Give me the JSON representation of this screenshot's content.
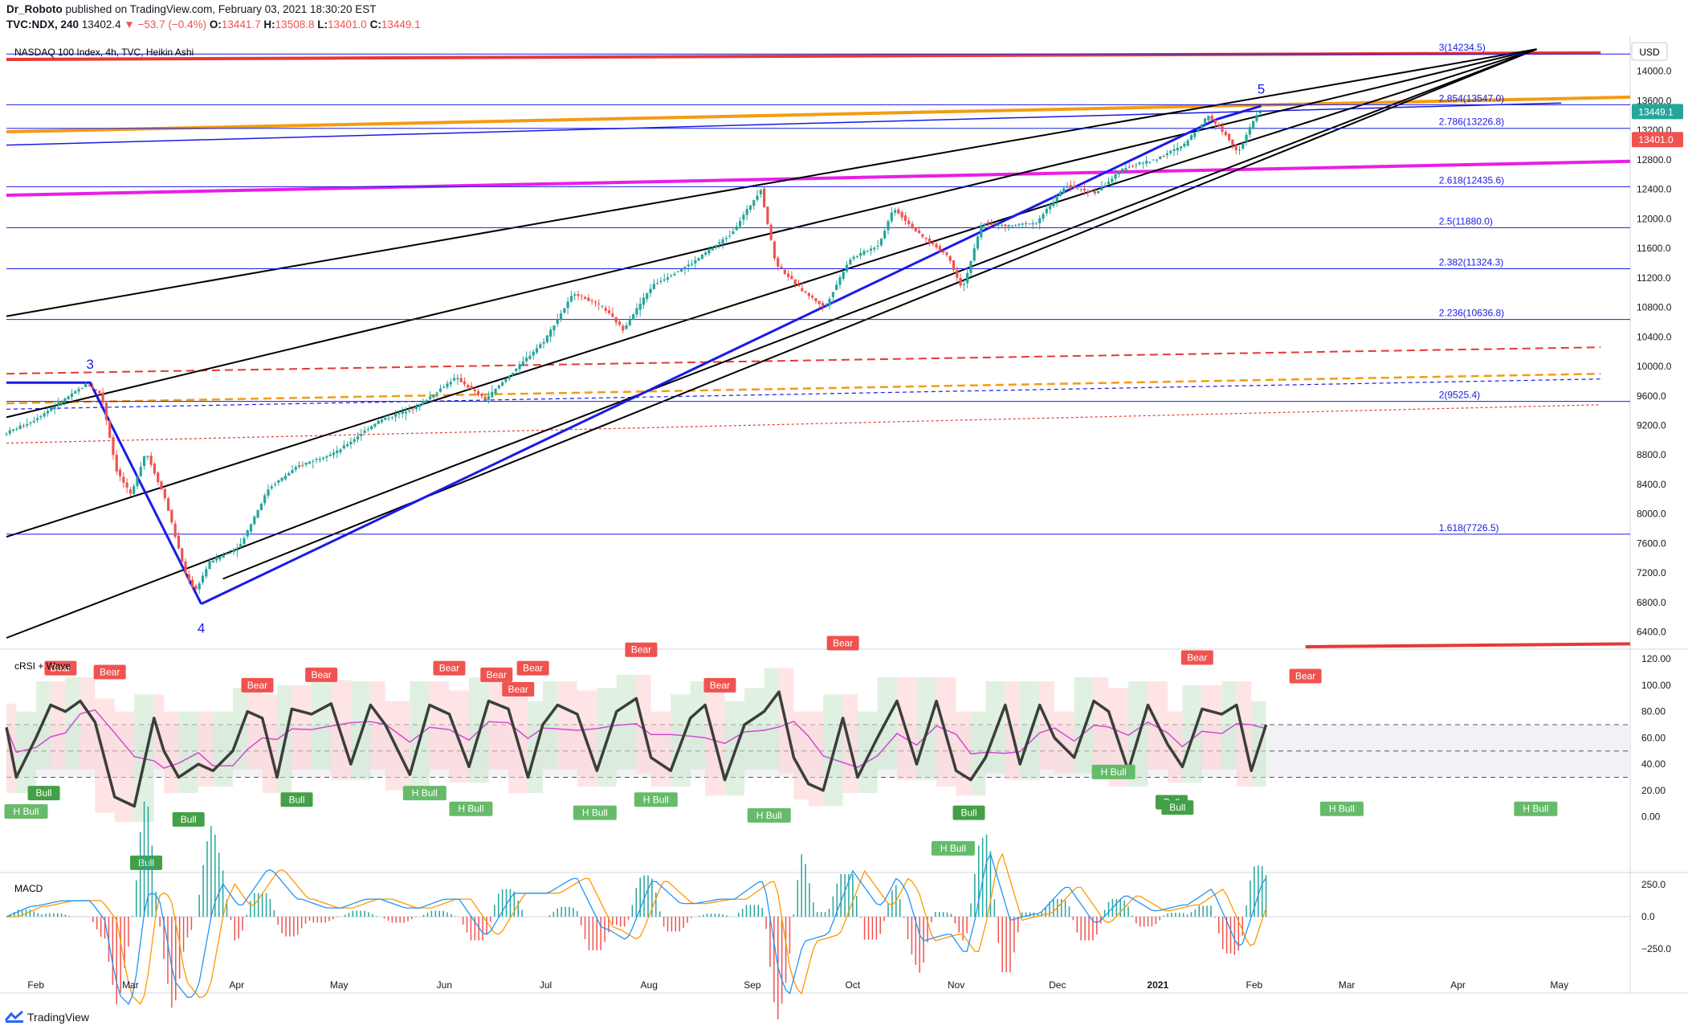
{
  "header": {
    "author": "Dr_Roboto",
    "published": "published on TradingView.com, February 03, 2021 18:30:20 EST",
    "symbol": "TVC:NDX, 240",
    "last": "13402.4",
    "change": "−53.7 (−0.4%)",
    "o_label": "O:",
    "o_value": "13441.7",
    "h_label": "H:",
    "h_value": "13508.8",
    "l_label": "L:",
    "l_value": "13401.0",
    "c_label": "C:",
    "c_value": "13449.1"
  },
  "legend_main": "NASDAQ 100 Index, 4h, TVC, Heikin Ashi",
  "currency": "USD",
  "price_badges": {
    "last": "13449.1",
    "low": "13401.0"
  },
  "footer": {
    "brand": "TradingView"
  },
  "colors": {
    "up": "#26a69a",
    "down": "#ef5350",
    "fib": "#1a1ae6",
    "magenta": "#e91ee6",
    "orange": "#f39c12",
    "red": "#e53935",
    "wave": "#1a1ae6"
  },
  "chart_data": {
    "type": "line",
    "title": "NASDAQ 100 Index, 4h, TVC, Heikin Ashi",
    "chart_style": "heikin ashi candles",
    "x_ticks": [
      {
        "label": "Feb",
        "t": 0.3
      },
      {
        "label": "Mar",
        "t": 1.26
      },
      {
        "label": "Apr",
        "t": 2.34
      },
      {
        "label": "May",
        "t": 3.38
      },
      {
        "label": "Jun",
        "t": 4.45
      },
      {
        "label": "Jul",
        "t": 5.48
      },
      {
        "label": "Aug",
        "t": 6.53
      },
      {
        "label": "Sep",
        "t": 7.58
      },
      {
        "label": "Oct",
        "t": 8.6
      },
      {
        "label": "Nov",
        "t": 9.65
      },
      {
        "label": "Dec",
        "t": 10.68
      },
      {
        "label": "2021",
        "t": 11.7
      },
      {
        "label": "Feb",
        "t": 12.68
      },
      {
        "label": "Mar",
        "t": 13.62
      },
      {
        "label": "Apr",
        "t": 14.75
      },
      {
        "label": "May",
        "t": 15.78
      }
    ],
    "x_range": [
      0,
      16.5
    ],
    "price_axis": {
      "ticks": [
        14000,
        13600,
        13200,
        12800,
        12400,
        12000,
        11600,
        11200,
        10800,
        10400,
        10000,
        9600,
        9200,
        8800,
        8400,
        8000,
        7600,
        7200,
        6800,
        6400
      ],
      "ylim": [
        6200,
        14400
      ]
    },
    "price_series": [
      {
        "t": 0,
        "v": 9080
      },
      {
        "t": 0.3,
        "v": 9260
      },
      {
        "t": 0.6,
        "v": 9530
      },
      {
        "t": 0.85,
        "v": 9760
      },
      {
        "t": 1.0,
        "v": 9620
      },
      {
        "t": 1.15,
        "v": 8600
      },
      {
        "t": 1.3,
        "v": 8250
      },
      {
        "t": 1.45,
        "v": 8850
      },
      {
        "t": 1.65,
        "v": 8200
      },
      {
        "t": 1.85,
        "v": 7200
      },
      {
        "t": 1.95,
        "v": 6950
      },
      {
        "t": 2.1,
        "v": 7350
      },
      {
        "t": 2.4,
        "v": 7550
      },
      {
        "t": 2.7,
        "v": 8350
      },
      {
        "t": 3.0,
        "v": 8650
      },
      {
        "t": 3.4,
        "v": 8850
      },
      {
        "t": 3.8,
        "v": 9250
      },
      {
        "t": 4.2,
        "v": 9450
      },
      {
        "t": 4.6,
        "v": 9850
      },
      {
        "t": 4.9,
        "v": 9550
      },
      {
        "t": 5.2,
        "v": 9950
      },
      {
        "t": 5.5,
        "v": 10350
      },
      {
        "t": 5.8,
        "v": 11000
      },
      {
        "t": 6.1,
        "v": 10800
      },
      {
        "t": 6.3,
        "v": 10500
      },
      {
        "t": 6.6,
        "v": 11100
      },
      {
        "t": 7.0,
        "v": 11400
      },
      {
        "t": 7.4,
        "v": 11800
      },
      {
        "t": 7.7,
        "v": 12400
      },
      {
        "t": 7.85,
        "v": 11400
      },
      {
        "t": 8.1,
        "v": 11050
      },
      {
        "t": 8.35,
        "v": 10800
      },
      {
        "t": 8.6,
        "v": 11450
      },
      {
        "t": 8.9,
        "v": 11650
      },
      {
        "t": 9.05,
        "v": 12150
      },
      {
        "t": 9.3,
        "v": 11800
      },
      {
        "t": 9.6,
        "v": 11500
      },
      {
        "t": 9.75,
        "v": 11050
      },
      {
        "t": 9.95,
        "v": 11950
      },
      {
        "t": 10.2,
        "v": 11900
      },
      {
        "t": 10.5,
        "v": 11950
      },
      {
        "t": 10.8,
        "v": 12450
      },
      {
        "t": 11.1,
        "v": 12350
      },
      {
        "t": 11.4,
        "v": 12700
      },
      {
        "t": 11.7,
        "v": 12800
      },
      {
        "t": 12.0,
        "v": 13000
      },
      {
        "t": 12.25,
        "v": 13400
      },
      {
        "t": 12.45,
        "v": 13100
      },
      {
        "t": 12.55,
        "v": 12900
      },
      {
        "t": 12.75,
        "v": 13449
      }
    ],
    "fib_levels": [
      {
        "label": "3(14234.5)",
        "value": 14234.5
      },
      {
        "label": "2.854(13547.0)",
        "value": 13547.0
      },
      {
        "label": "2.786(13226.8)",
        "value": 13226.8
      },
      {
        "label": "2.618(12435.6)",
        "value": 12435.6
      },
      {
        "label": "2.5(11880.0)",
        "value": 11880.0
      },
      {
        "label": "2.382(11324.3)",
        "value": 11324.3
      },
      {
        "label": "2.236(10636.8)",
        "value": 10636.8
      },
      {
        "label": "2(9525.4)",
        "value": 9525.4
      },
      {
        "label": "1.618(7726.5)",
        "value": 7726.5
      }
    ],
    "wave_labels": [
      {
        "label": "3",
        "t": 0.85,
        "v": 9770
      },
      {
        "label": "4",
        "t": 1.98,
        "v": 6760
      },
      {
        "label": "5",
        "t": 12.75,
        "v": 13500
      }
    ],
    "indicator_rsi": {
      "title": "cRSI + Wave",
      "ticks": [
        120,
        100,
        80,
        60,
        40,
        20,
        0
      ],
      "ylim": [
        -40,
        125
      ],
      "reference_levels": [
        70,
        50,
        30
      ],
      "series": [
        {
          "t": 0,
          "v": 68
        },
        {
          "t": 0.1,
          "v": 30
        },
        {
          "t": 0.3,
          "v": 60
        },
        {
          "t": 0.45,
          "v": 85
        },
        {
          "t": 0.6,
          "v": 80
        },
        {
          "t": 0.75,
          "v": 88
        },
        {
          "t": 0.9,
          "v": 72
        },
        {
          "t": 1.1,
          "v": 15
        },
        {
          "t": 1.3,
          "v": 8
        },
        {
          "t": 1.5,
          "v": 75
        },
        {
          "t": 1.6,
          "v": 50
        },
        {
          "t": 1.75,
          "v": 30
        },
        {
          "t": 1.95,
          "v": 40
        },
        {
          "t": 2.1,
          "v": 35
        },
        {
          "t": 2.3,
          "v": 50
        },
        {
          "t": 2.45,
          "v": 80
        },
        {
          "t": 2.6,
          "v": 75
        },
        {
          "t": 2.75,
          "v": 30
        },
        {
          "t": 2.9,
          "v": 82
        },
        {
          "t": 3.1,
          "v": 78
        },
        {
          "t": 3.3,
          "v": 86
        },
        {
          "t": 3.5,
          "v": 40
        },
        {
          "t": 3.7,
          "v": 85
        },
        {
          "t": 3.85,
          "v": 70
        },
        {
          "t": 4.1,
          "v": 32
        },
        {
          "t": 4.3,
          "v": 85
        },
        {
          "t": 4.5,
          "v": 78
        },
        {
          "t": 4.7,
          "v": 38
        },
        {
          "t": 4.9,
          "v": 88
        },
        {
          "t": 5.1,
          "v": 82
        },
        {
          "t": 5.3,
          "v": 30
        },
        {
          "t": 5.45,
          "v": 70
        },
        {
          "t": 5.6,
          "v": 85
        },
        {
          "t": 5.8,
          "v": 78
        },
        {
          "t": 6.0,
          "v": 35
        },
        {
          "t": 6.2,
          "v": 80
        },
        {
          "t": 6.4,
          "v": 90
        },
        {
          "t": 6.55,
          "v": 45
        },
        {
          "t": 6.75,
          "v": 35
        },
        {
          "t": 6.95,
          "v": 75
        },
        {
          "t": 7.1,
          "v": 85
        },
        {
          "t": 7.3,
          "v": 28
        },
        {
          "t": 7.5,
          "v": 70
        },
        {
          "t": 7.7,
          "v": 80
        },
        {
          "t": 7.85,
          "v": 95
        },
        {
          "t": 8.0,
          "v": 45
        },
        {
          "t": 8.15,
          "v": 25
        },
        {
          "t": 8.3,
          "v": 20
        },
        {
          "t": 8.5,
          "v": 75
        },
        {
          "t": 8.65,
          "v": 30
        },
        {
          "t": 8.85,
          "v": 60
        },
        {
          "t": 9.05,
          "v": 88
        },
        {
          "t": 9.25,
          "v": 40
        },
        {
          "t": 9.45,
          "v": 88
        },
        {
          "t": 9.65,
          "v": 35
        },
        {
          "t": 9.8,
          "v": 28
        },
        {
          "t": 9.95,
          "v": 45
        },
        {
          "t": 10.15,
          "v": 85
        },
        {
          "t": 10.3,
          "v": 40
        },
        {
          "t": 10.5,
          "v": 85
        },
        {
          "t": 10.65,
          "v": 60
        },
        {
          "t": 10.85,
          "v": 45
        },
        {
          "t": 11.05,
          "v": 88
        },
        {
          "t": 11.2,
          "v": 80
        },
        {
          "t": 11.4,
          "v": 35
        },
        {
          "t": 11.6,
          "v": 85
        },
        {
          "t": 11.8,
          "v": 55
        },
        {
          "t": 11.95,
          "v": 38
        },
        {
          "t": 12.15,
          "v": 82
        },
        {
          "t": 12.35,
          "v": 78
        },
        {
          "t": 12.5,
          "v": 85
        },
        {
          "t": 12.65,
          "v": 35
        },
        {
          "t": 12.8,
          "v": 70
        }
      ]
    },
    "indicator_macd": {
      "title": "MACD",
      "ticks": [
        "250.0",
        "0.0",
        "−250.0"
      ],
      "ylim": [
        -420,
        320
      ]
    },
    "signals": [
      {
        "label": "Bear",
        "t": 0.55,
        "v": 113,
        "kind": "bear"
      },
      {
        "label": "Bear",
        "t": 1.05,
        "v": 110,
        "kind": "bear"
      },
      {
        "label": "Bear",
        "t": 2.55,
        "v": 100,
        "kind": "bear"
      },
      {
        "label": "Bear",
        "t": 3.2,
        "v": 108,
        "kind": "bear"
      },
      {
        "label": "Bear",
        "t": 4.5,
        "v": 113,
        "kind": "bear"
      },
      {
        "label": "Bear",
        "t": 4.98,
        "v": 108,
        "kind": "bear"
      },
      {
        "label": "Bear",
        "t": 5.2,
        "v": 97,
        "kind": "bear"
      },
      {
        "label": "Bear",
        "t": 5.35,
        "v": 113,
        "kind": "bear"
      },
      {
        "label": "Bear",
        "t": 6.45,
        "v": 127,
        "kind": "bear"
      },
      {
        "label": "Bear",
        "t": 7.25,
        "v": 100,
        "kind": "bear"
      },
      {
        "label": "Bear",
        "t": 8.5,
        "v": 132,
        "kind": "bear"
      },
      {
        "label": "Bear",
        "t": 12.1,
        "v": 121,
        "kind": "bear"
      },
      {
        "label": "Bear",
        "t": 13.2,
        "v": 107,
        "kind": "bear"
      },
      {
        "label": "Bull",
        "t": 0.38,
        "v": 18,
        "kind": "bull"
      },
      {
        "label": "Bull",
        "t": 1.85,
        "v": -2,
        "kind": "bull"
      },
      {
        "label": "Bull",
        "t": 1.42,
        "v": -35,
        "kind": "bull"
      },
      {
        "label": "Bull",
        "t": 2.95,
        "v": 13,
        "kind": "bull"
      },
      {
        "label": "Bull",
        "t": 9.78,
        "v": 3,
        "kind": "bull"
      },
      {
        "label": "Bull",
        "t": 11.84,
        "v": 11,
        "kind": "bull"
      },
      {
        "label": "Bull",
        "t": 11.9,
        "v": 7,
        "kind": "bull"
      },
      {
        "label": "H Bull",
        "t": 0.2,
        "v": 4,
        "kind": "hbull"
      },
      {
        "label": "H Bull",
        "t": 4.25,
        "v": 18,
        "kind": "hbull"
      },
      {
        "label": "H Bull",
        "t": 4.72,
        "v": 6,
        "kind": "hbull"
      },
      {
        "label": "H Bull",
        "t": 5.98,
        "v": 3,
        "kind": "hbull"
      },
      {
        "label": "H Bull",
        "t": 6.6,
        "v": 13,
        "kind": "hbull"
      },
      {
        "label": "H Bull",
        "t": 7.75,
        "v": 1,
        "kind": "hbull"
      },
      {
        "label": "H Bull",
        "t": 9.62,
        "v": -24,
        "kind": "hbull"
      },
      {
        "label": "H Bull",
        "t": 11.25,
        "v": 34,
        "kind": "hbull"
      },
      {
        "label": "H Bull",
        "t": 13.57,
        "v": 6,
        "kind": "hbull"
      },
      {
        "label": "H Bull",
        "t": 15.54,
        "v": 6,
        "kind": "hbull"
      }
    ]
  }
}
